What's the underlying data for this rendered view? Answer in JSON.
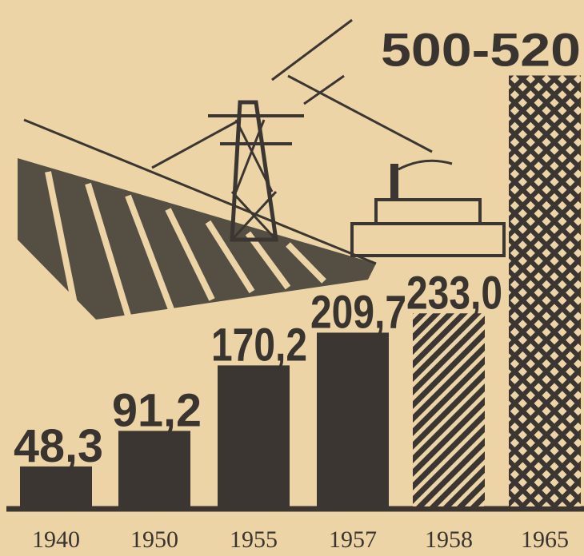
{
  "chart_data": {
    "type": "bar",
    "categories": [
      "1940",
      "1950",
      "1955",
      "1957",
      "1958",
      "1965"
    ],
    "values": [
      48.3,
      91.2,
      170.2,
      209.7,
      233.0,
      520
    ],
    "value_labels": [
      "48,3",
      "91,2",
      "170,2",
      "209,7",
      "233,0",
      "500-520"
    ],
    "color": "#3b3631",
    "bar_fill": [
      "solid",
      "solid",
      "solid",
      "solid",
      "hatch",
      "crosshatch"
    ],
    "ylim": [
      0,
      560
    ]
  }
}
